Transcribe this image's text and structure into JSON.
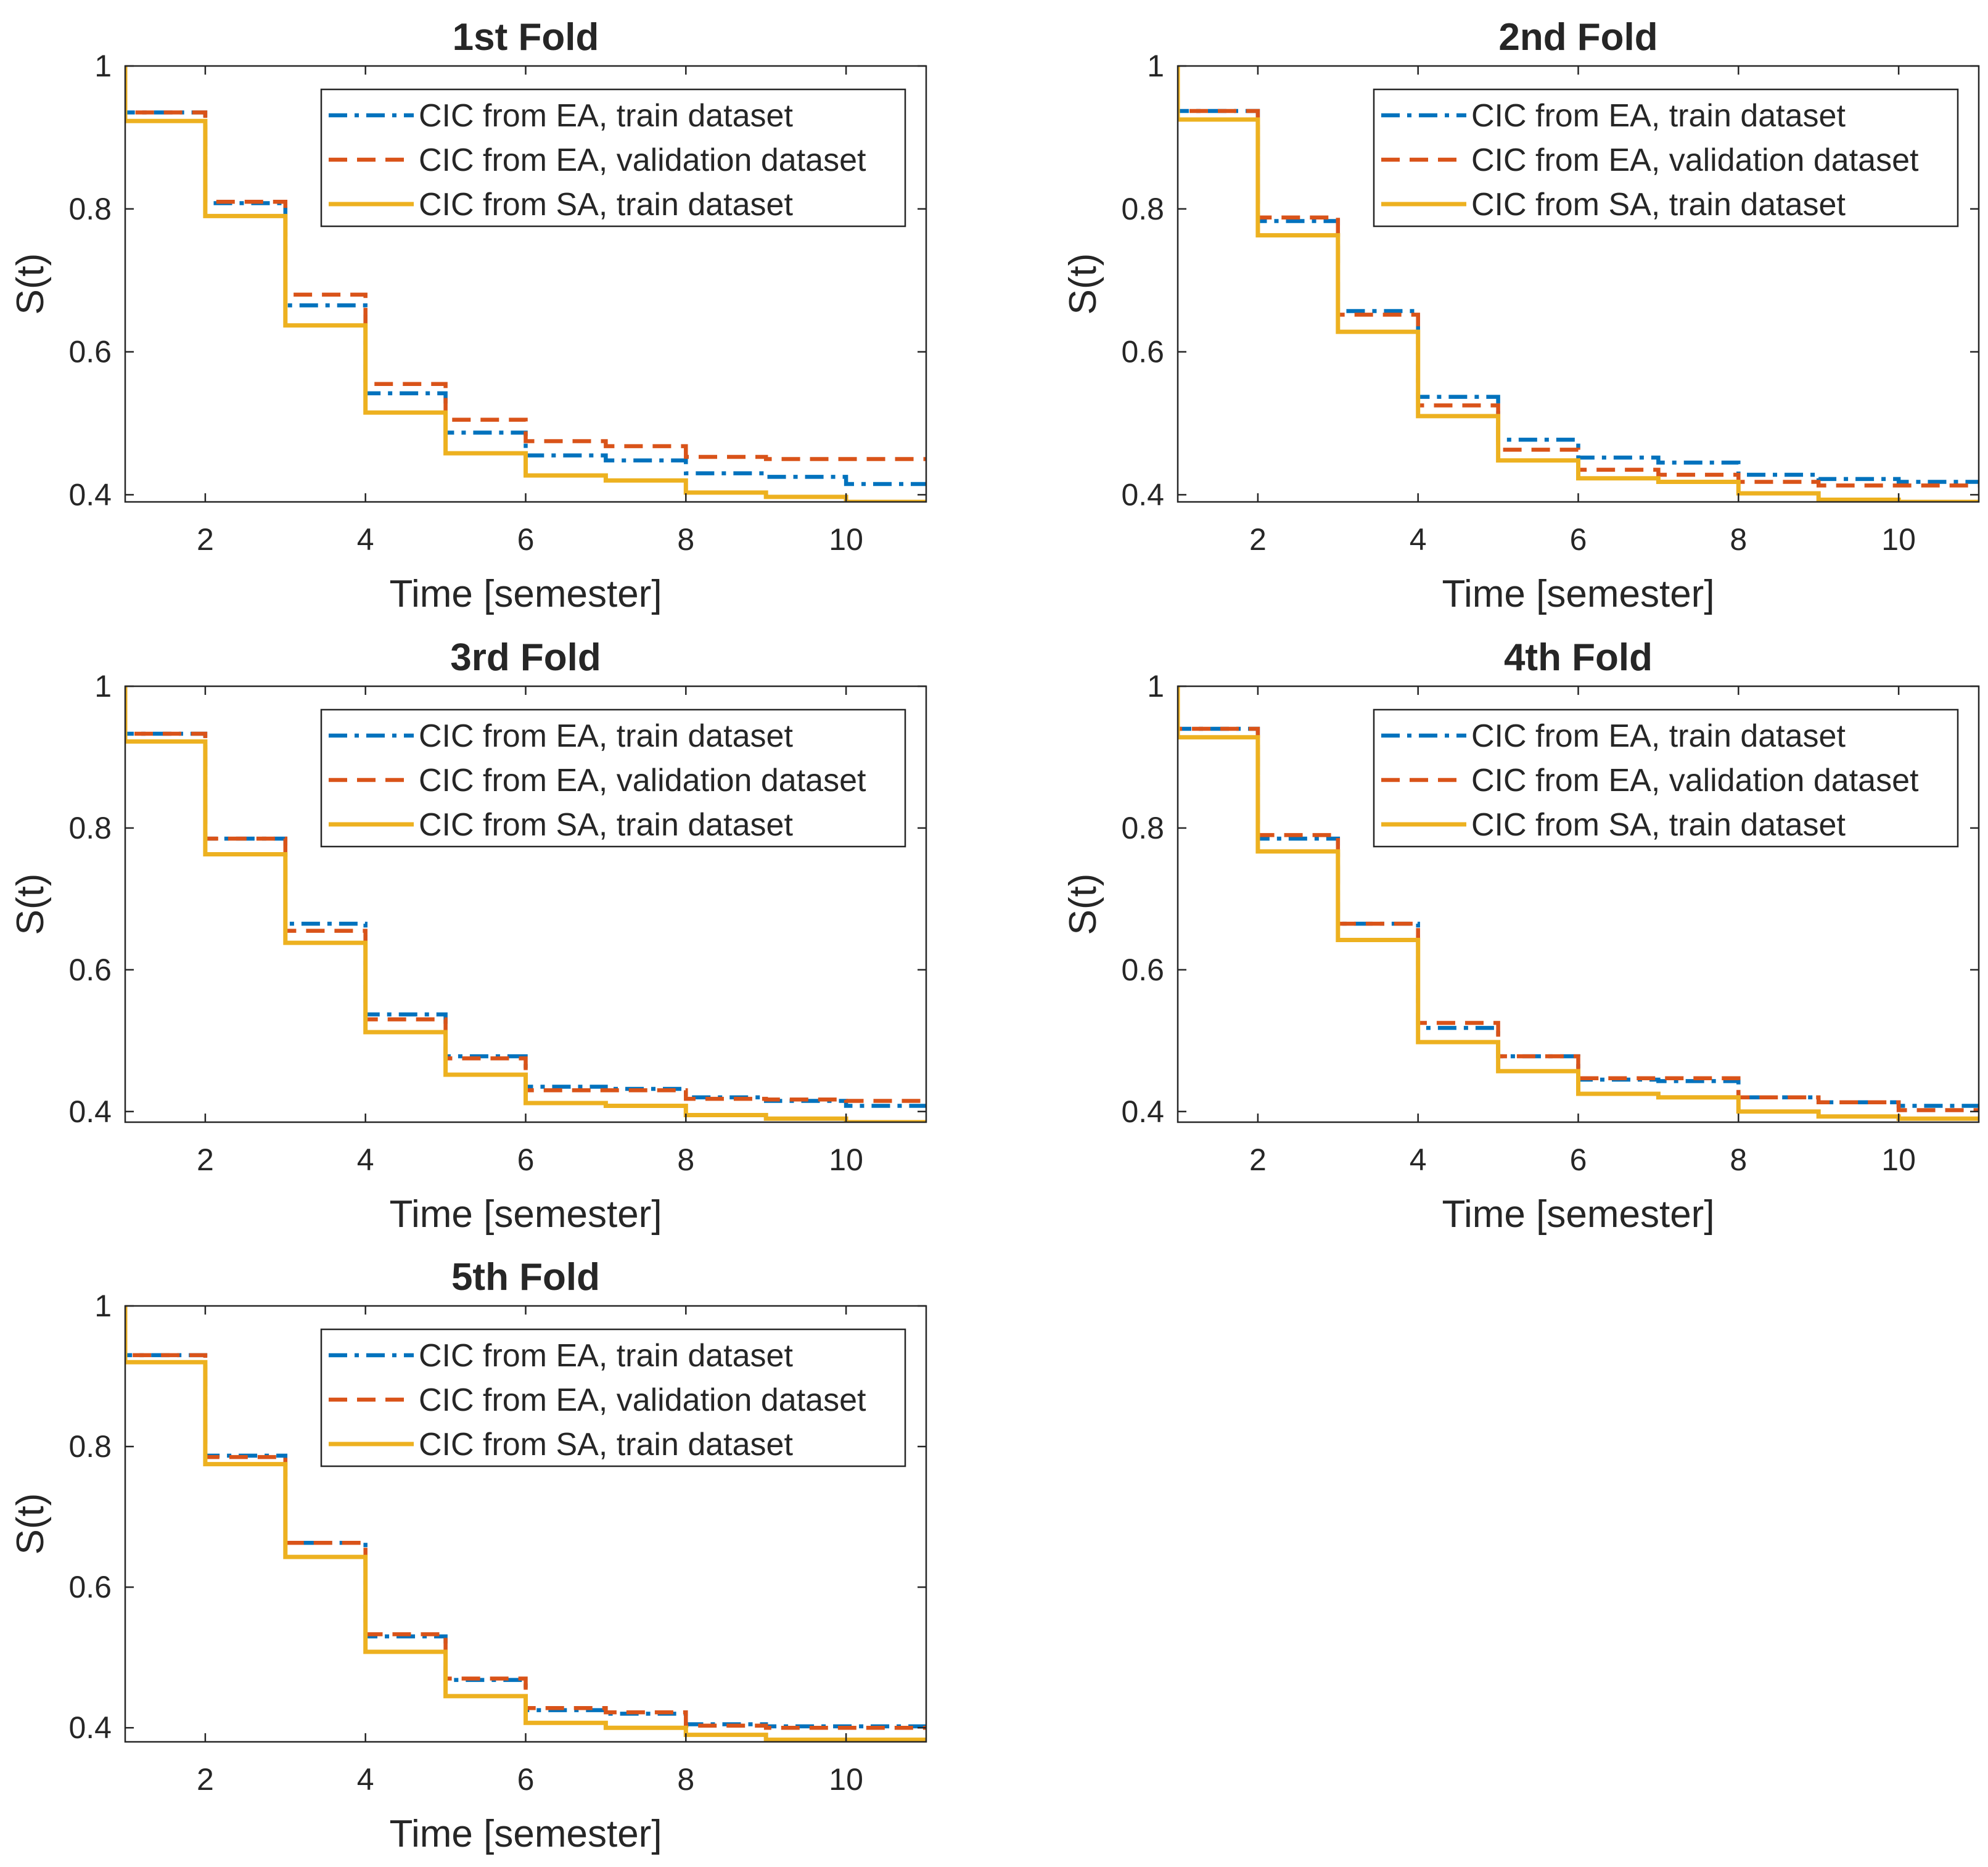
{
  "figure": {
    "background": "#ffffff"
  },
  "series_styles": [
    {
      "key": "ea_train",
      "color": "#0072BD",
      "dash": "dashdot"
    },
    {
      "key": "ea_val",
      "color": "#D95319",
      "dash": "dashed"
    },
    {
      "key": "sa_train",
      "color": "#EDB120",
      "dash": "solid"
    }
  ],
  "chart_data": [
    {
      "type": "line",
      "step": "post",
      "title": "1st  Fold",
      "xlabel": "Time [semester]",
      "ylabel": "S(t)",
      "xlim": [
        1,
        11
      ],
      "ylim": [
        0.39,
        1
      ],
      "xticks": [
        2,
        4,
        6,
        8,
        10
      ],
      "yticks": [
        0.4,
        0.6,
        0.8,
        1
      ],
      "ytick_labels": [
        "0.4",
        "0.6",
        "0.8",
        "1"
      ],
      "legend_position": "top-right",
      "x": [
        1,
        2,
        3,
        4,
        5,
        6,
        7,
        8,
        9,
        10,
        11
      ],
      "series": [
        {
          "name": "CIC from EA, train dataset",
          "values": [
            0.935,
            0.808,
            0.665,
            0.542,
            0.487,
            0.455,
            0.448,
            0.43,
            0.425,
            0.415,
            0.415
          ]
        },
        {
          "name": "CIC from EA, validation dataset",
          "values": [
            0.935,
            0.81,
            0.68,
            0.555,
            0.505,
            0.475,
            0.468,
            0.453,
            0.45,
            0.45,
            0.45
          ]
        },
        {
          "name": "CIC from SA, train dataset",
          "values": [
            0.923,
            0.79,
            0.637,
            0.515,
            0.458,
            0.427,
            0.42,
            0.403,
            0.397,
            0.39,
            0.39
          ]
        }
      ]
    },
    {
      "type": "line",
      "step": "post",
      "title": "2nd  Fold",
      "xlabel": "Time [semester]",
      "ylabel": "S(t)",
      "xlim": [
        1,
        11
      ],
      "ylim": [
        0.39,
        1
      ],
      "xticks": [
        2,
        4,
        6,
        8,
        10
      ],
      "yticks": [
        0.4,
        0.6,
        0.8,
        1
      ],
      "ytick_labels": [
        "0.4",
        "0.6",
        "0.8",
        "1"
      ],
      "legend_position": "top-right",
      "x": [
        1,
        2,
        3,
        4,
        5,
        6,
        7,
        8,
        9,
        10,
        11
      ],
      "series": [
        {
          "name": "CIC from EA, train dataset",
          "values": [
            0.937,
            0.783,
            0.657,
            0.537,
            0.477,
            0.452,
            0.445,
            0.428,
            0.422,
            0.418,
            0.418
          ]
        },
        {
          "name": "CIC from EA, validation dataset",
          "values": [
            0.937,
            0.788,
            0.652,
            0.525,
            0.463,
            0.435,
            0.428,
            0.418,
            0.413,
            0.413,
            0.413
          ]
        },
        {
          "name": "CIC from SA, train dataset",
          "values": [
            0.925,
            0.763,
            0.628,
            0.51,
            0.448,
            0.423,
            0.418,
            0.402,
            0.393,
            0.39,
            0.39
          ]
        }
      ]
    },
    {
      "type": "line",
      "step": "post",
      "title": "3rd  Fold",
      "xlabel": "Time [semester]",
      "ylabel": "S(t)",
      "xlim": [
        1,
        11
      ],
      "ylim": [
        0.385,
        1
      ],
      "xticks": [
        2,
        4,
        6,
        8,
        10
      ],
      "yticks": [
        0.4,
        0.6,
        0.8,
        1
      ],
      "ytick_labels": [
        "0.4",
        "0.6",
        "0.8",
        "1"
      ],
      "legend_position": "top-right",
      "x": [
        1,
        2,
        3,
        4,
        5,
        6,
        7,
        8,
        9,
        10,
        11
      ],
      "series": [
        {
          "name": "CIC from EA, train dataset",
          "values": [
            0.933,
            0.785,
            0.665,
            0.537,
            0.478,
            0.435,
            0.432,
            0.42,
            0.415,
            0.408,
            0.408
          ]
        },
        {
          "name": "CIC from EA, validation dataset",
          "values": [
            0.933,
            0.785,
            0.655,
            0.53,
            0.475,
            0.43,
            0.43,
            0.418,
            0.417,
            0.415,
            0.415
          ]
        },
        {
          "name": "CIC from SA, train dataset",
          "values": [
            0.922,
            0.763,
            0.638,
            0.512,
            0.452,
            0.412,
            0.408,
            0.395,
            0.39,
            0.385,
            0.385
          ]
        }
      ]
    },
    {
      "type": "line",
      "step": "post",
      "title": "4th  Fold",
      "xlabel": "Time [semester]",
      "ylabel": "S(t)",
      "xlim": [
        1,
        11
      ],
      "ylim": [
        0.385,
        1
      ],
      "xticks": [
        2,
        4,
        6,
        8,
        10
      ],
      "yticks": [
        0.4,
        0.6,
        0.8,
        1
      ],
      "ytick_labels": [
        "0.4",
        "0.6",
        "0.8",
        "1"
      ],
      "legend_position": "top-right",
      "x": [
        1,
        2,
        3,
        4,
        5,
        6,
        7,
        8,
        9,
        10,
        11
      ],
      "series": [
        {
          "name": "CIC from EA, train dataset",
          "values": [
            0.94,
            0.785,
            0.665,
            0.518,
            0.478,
            0.445,
            0.443,
            0.42,
            0.413,
            0.408,
            0.408
          ]
        },
        {
          "name": "CIC from EA, validation dataset",
          "values": [
            0.94,
            0.79,
            0.665,
            0.525,
            0.478,
            0.447,
            0.447,
            0.42,
            0.413,
            0.402,
            0.402
          ]
        },
        {
          "name": "CIC from SA, train dataset",
          "values": [
            0.928,
            0.767,
            0.642,
            0.498,
            0.457,
            0.425,
            0.42,
            0.4,
            0.393,
            0.39,
            0.39
          ]
        }
      ]
    },
    {
      "type": "line",
      "step": "post",
      "title": "5th  Fold",
      "xlabel": "Time [semester]",
      "ylabel": "S(t)",
      "xlim": [
        1,
        11
      ],
      "ylim": [
        0.38,
        1
      ],
      "xticks": [
        2,
        4,
        6,
        8,
        10
      ],
      "yticks": [
        0.4,
        0.6,
        0.8,
        1
      ],
      "ytick_labels": [
        "0.4",
        "0.6",
        "0.8",
        "1"
      ],
      "legend_position": "top-right",
      "x": [
        1,
        2,
        3,
        4,
        5,
        6,
        7,
        8,
        9,
        10,
        11
      ],
      "series": [
        {
          "name": "CIC from EA, train dataset",
          "values": [
            0.93,
            0.787,
            0.663,
            0.53,
            0.468,
            0.425,
            0.42,
            0.405,
            0.402,
            0.402,
            0.402
          ]
        },
        {
          "name": "CIC from EA, validation dataset",
          "values": [
            0.93,
            0.785,
            0.663,
            0.533,
            0.47,
            0.428,
            0.422,
            0.403,
            0.4,
            0.4,
            0.4
          ]
        },
        {
          "name": "CIC from SA, train dataset",
          "values": [
            0.92,
            0.775,
            0.643,
            0.508,
            0.445,
            0.407,
            0.4,
            0.39,
            0.383,
            0.383,
            0.383
          ]
        }
      ]
    }
  ]
}
